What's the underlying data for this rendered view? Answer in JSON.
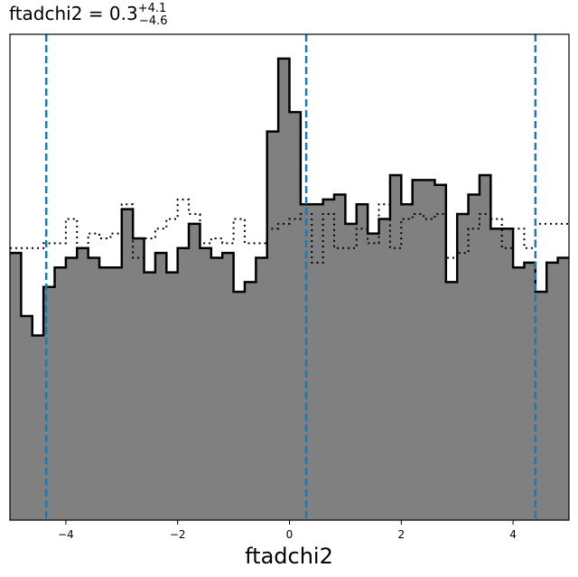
{
  "chart_data": {
    "type": "histogram",
    "title": {
      "param": "ftadchi2",
      "equals": " = ",
      "median": "0.3",
      "plus": "+4.1",
      "minus": "−4.6"
    },
    "xlabel": "ftadchi2",
    "ylabel": "",
    "xlim": [
      -5,
      5
    ],
    "ylim": [
      0,
      1
    ],
    "x_ticks": [
      -4,
      -2,
      0,
      2,
      4
    ],
    "x_tick_labels": [
      "−4",
      "−2",
      "0",
      "2",
      "4"
    ],
    "grid": false,
    "legend": "none",
    "bin_edges": [
      -5.0,
      -4.8,
      -4.6,
      -4.4,
      -4.2,
      -4.0,
      -3.8,
      -3.6,
      -3.4,
      -3.2,
      -3.0,
      -2.8,
      -2.6,
      -2.4,
      -2.2,
      -2.0,
      -1.8,
      -1.6,
      -1.4,
      -1.2,
      -1.0,
      -0.8,
      -0.6,
      -0.4,
      -0.2,
      0.0,
      0.2,
      0.4,
      0.6,
      0.8,
      1.0,
      1.2,
      1.4,
      1.6,
      1.8,
      2.0,
      2.2,
      2.4,
      2.6,
      2.8,
      3.0,
      3.2,
      3.4,
      3.6,
      3.8,
      4.0,
      4.2,
      4.4,
      4.6,
      4.8,
      5.0
    ],
    "series": [
      {
        "style": "filled",
        "fill": "#808080",
        "edge": "#000000",
        "values": [
          0.55,
          0.42,
          0.38,
          0.48,
          0.52,
          0.54,
          0.56,
          0.54,
          0.52,
          0.52,
          0.64,
          0.58,
          0.51,
          0.55,
          0.51,
          0.56,
          0.61,
          0.56,
          0.54,
          0.55,
          0.47,
          0.49,
          0.54,
          0.8,
          0.95,
          0.84,
          0.65,
          0.65,
          0.66,
          0.67,
          0.61,
          0.65,
          0.59,
          0.62,
          0.71,
          0.65,
          0.7,
          0.7,
          0.69,
          0.49,
          0.63,
          0.67,
          0.71,
          0.6,
          0.6,
          0.52,
          0.53,
          0.47,
          0.53,
          0.54
        ]
      },
      {
        "style": "dotted-step",
        "edge": "#000000",
        "values": [
          0.56,
          0.56,
          0.56,
          0.57,
          0.57,
          0.62,
          0.56,
          0.59,
          0.58,
          0.59,
          0.65,
          0.54,
          0.58,
          0.6,
          0.62,
          0.66,
          0.63,
          0.57,
          0.58,
          0.57,
          0.62,
          0.57,
          0.57,
          0.6,
          0.61,
          0.62,
          0.63,
          0.53,
          0.63,
          0.56,
          0.56,
          0.6,
          0.57,
          0.65,
          0.56,
          0.62,
          0.63,
          0.62,
          0.63,
          0.54,
          0.55,
          0.6,
          0.63,
          0.62,
          0.56,
          0.6,
          0.56,
          0.61,
          0.61,
          0.61
        ]
      }
    ],
    "vlines": {
      "color": "#1f77b4",
      "style": "dashed",
      "x": [
        -4.35,
        0.3,
        4.4
      ]
    }
  }
}
